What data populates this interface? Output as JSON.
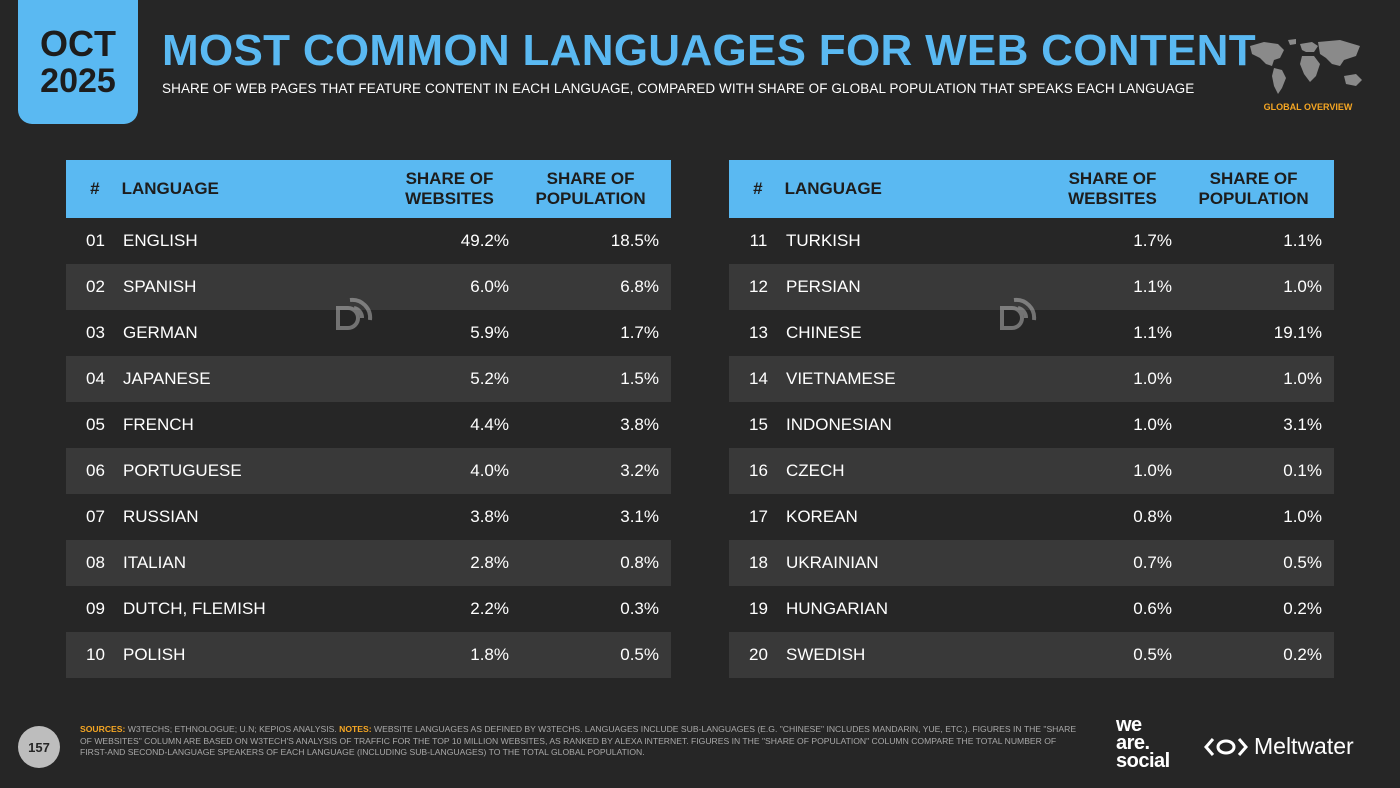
{
  "badge": {
    "month": "OCT",
    "year": "2025"
  },
  "title": "MOST COMMON LANGUAGES FOR WEB CONTENT",
  "subtitle": "SHARE OF WEB PAGES THAT FEATURE CONTENT IN EACH LANGUAGE, COMPARED WITH SHARE OF GLOBAL POPULATION THAT SPEAKS EACH LANGUAGE",
  "globe_label": "GLOBAL OVERVIEW",
  "headers": {
    "num": "#",
    "language": "LANGUAGE",
    "websites_1": "SHARE OF",
    "websites_2": "WEBSITES",
    "population_1": "SHARE OF",
    "population_2": "POPULATION"
  },
  "left_rows": [
    {
      "num": "01",
      "language": "ENGLISH",
      "websites": "49.2%",
      "population": "18.5%"
    },
    {
      "num": "02",
      "language": "SPANISH",
      "websites": "6.0%",
      "population": "6.8%"
    },
    {
      "num": "03",
      "language": "GERMAN",
      "websites": "5.9%",
      "population": "1.7%"
    },
    {
      "num": "04",
      "language": "JAPANESE",
      "websites": "5.2%",
      "population": "1.5%"
    },
    {
      "num": "05",
      "language": "FRENCH",
      "websites": "4.4%",
      "population": "3.8%"
    },
    {
      "num": "06",
      "language": "PORTUGUESE",
      "websites": "4.0%",
      "population": "3.2%"
    },
    {
      "num": "07",
      "language": "RUSSIAN",
      "websites": "3.8%",
      "population": "3.1%"
    },
    {
      "num": "08",
      "language": "ITALIAN",
      "websites": "2.8%",
      "population": "0.8%"
    },
    {
      "num": "09",
      "language": "DUTCH, FLEMISH",
      "websites": "2.2%",
      "population": "0.3%"
    },
    {
      "num": "10",
      "language": "POLISH",
      "websites": "1.8%",
      "population": "0.5%"
    }
  ],
  "right_rows": [
    {
      "num": "11",
      "language": "TURKISH",
      "websites": "1.7%",
      "population": "1.1%"
    },
    {
      "num": "12",
      "language": "PERSIAN",
      "websites": "1.1%",
      "population": "1.0%"
    },
    {
      "num": "13",
      "language": "CHINESE",
      "websites": "1.1%",
      "population": "19.1%"
    },
    {
      "num": "14",
      "language": "VIETNAMESE",
      "websites": "1.0%",
      "population": "1.0%"
    },
    {
      "num": "15",
      "language": "INDONESIAN",
      "websites": "1.0%",
      "population": "3.1%"
    },
    {
      "num": "16",
      "language": "CZECH",
      "websites": "1.0%",
      "population": "0.1%"
    },
    {
      "num": "17",
      "language": "KOREAN",
      "websites": "0.8%",
      "population": "1.0%"
    },
    {
      "num": "18",
      "language": "UKRAINIAN",
      "websites": "0.7%",
      "population": "0.5%"
    },
    {
      "num": "19",
      "language": "HUNGARIAN",
      "websites": "0.6%",
      "population": "0.2%"
    },
    {
      "num": "20",
      "language": "SWEDISH",
      "websites": "0.5%",
      "population": "0.2%"
    }
  ],
  "footer": {
    "page_number": "157",
    "sources_key": "SOURCES:",
    "sources_text": " W3TECHS; ETHNOLOGUE; U.N; KEPIOS ANALYSIS. ",
    "notes_key": "NOTES:",
    "notes_text": " WEBSITE LANGUAGES AS DEFINED BY W3TECHS. LANGUAGES INCLUDE SUB-LANGUAGES (E.G. \"CHINESE\" INCLUDES MANDARIN, YUE, ETC.). FIGURES IN THE \"SHARE OF WEBSITES\" COLUMN ARE BASED ON W3TECH'S ANALYSIS OF TRAFFIC FOR THE TOP 10 MILLION WEBSITES, AS RANKED BY ALEXA INTERNET. FIGURES IN THE \"SHARE OF POPULATION\" COLUMN COMPARE THE TOTAL NUMBER OF FIRST-AND SECOND-LANGUAGE SPEAKERS OF EACH LANGUAGE (INCLUDING SUB-LANGUAGES) TO THE TOTAL GLOBAL POPULATION.",
    "brand_was_1": "we",
    "brand_was_2": "are.",
    "brand_was_3": "social",
    "brand_meltwater": "Meltwater"
  },
  "colors": {
    "accent": "#5ab9f2",
    "orange": "#f5a623",
    "background": "#262626",
    "row_alt": "#393939"
  }
}
